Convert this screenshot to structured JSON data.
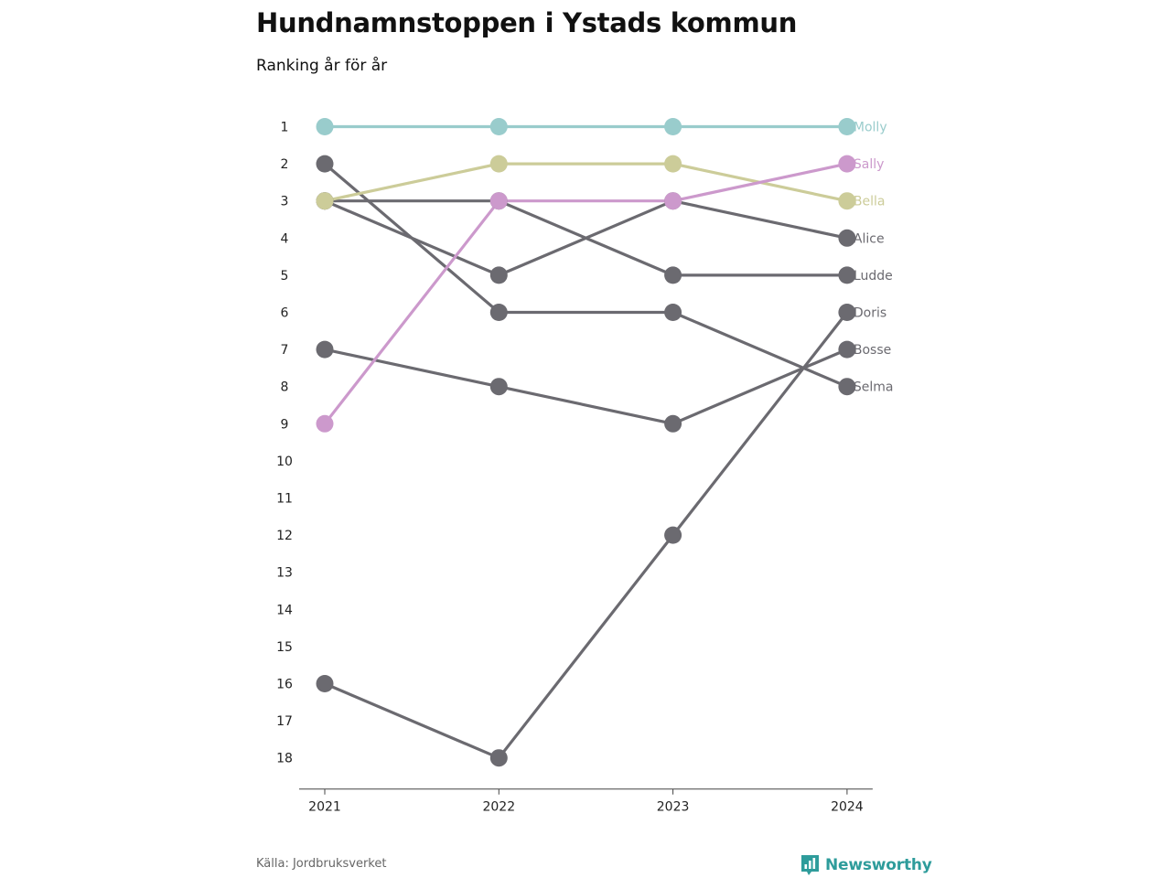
{
  "header": {
    "title": "Hundnamnstoppen i Ystads kommun",
    "subtitle": "Ranking år för år"
  },
  "footer": {
    "source": "Källa: Jordbruksverket",
    "brand": "Newsworthy",
    "brand_icon": "bar-chart-speech-bubble-icon",
    "brand_color": "#2e9c9b"
  },
  "chart_data": {
    "type": "line",
    "x": [
      "2021",
      "2022",
      "2023",
      "2024"
    ],
    "ylim": [
      1,
      18
    ],
    "y_reversed": true,
    "y_ticks": [
      1,
      2,
      3,
      4,
      5,
      6,
      7,
      8,
      9,
      10,
      11,
      12,
      13,
      14,
      15,
      16,
      17,
      18
    ],
    "grid": false,
    "legend": "end-of-line labels at right",
    "series": [
      {
        "name": "Selma",
        "values": [
          2,
          6,
          6,
          8
        ],
        "color": "#6b6a70"
      },
      {
        "name": "Bosse",
        "values": [
          7,
          8,
          9,
          7
        ],
        "color": "#6b6a70"
      },
      {
        "name": "Doris",
        "values": [
          16,
          18,
          12,
          6
        ],
        "color": "#6b6a70"
      },
      {
        "name": "Ludde",
        "values": [
          3,
          3,
          5,
          5
        ],
        "color": "#6b6a70"
      },
      {
        "name": "Alice",
        "values": [
          3,
          5,
          3,
          4
        ],
        "color": "#6b6a70"
      },
      {
        "name": "Bella",
        "values": [
          3,
          2,
          2,
          3
        ],
        "color": "#cccc99"
      },
      {
        "name": "Sally",
        "values": [
          9,
          3,
          3,
          2
        ],
        "color": "#cc99cc"
      },
      {
        "name": "Molly",
        "values": [
          1,
          1,
          1,
          1
        ],
        "color": "#99cccc"
      }
    ]
  }
}
